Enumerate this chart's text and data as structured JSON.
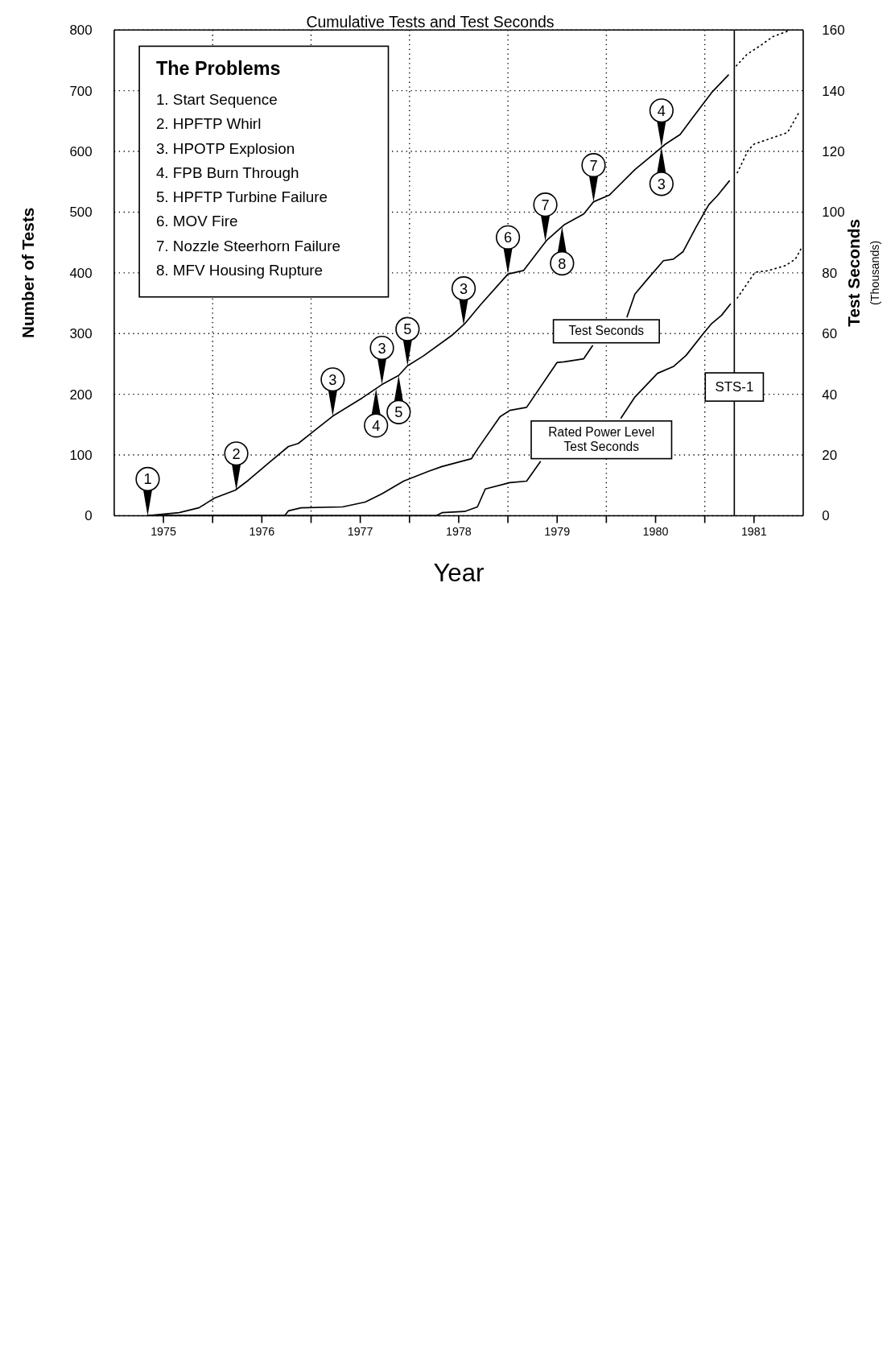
{
  "chart_data": {
    "type": "line",
    "title": "Cumulative Tests and Test Seconds",
    "xlabel": "Year",
    "ylabel": "Number of Tests",
    "y2label": "Test Seconds",
    "annotations": [
      "(Thousands)",
      "The Problems",
      "1. Start Sequence",
      "2. HPFTP Whirl",
      "3. HPOTP Explosion",
      "4. FPB Burn Through",
      "5. HPFTP Turbine Failure",
      "6. MOV Fire",
      "7. Nozzle Steerhorn Failure",
      "8. MFV Housing Rupture",
      {
        "text": "1",
        "x": 1975.34,
        "y": 0
      },
      {
        "text": "2",
        "x": 1976.24,
        "y": 42
      },
      {
        "text": "3",
        "x": 1977.22,
        "y": 164
      },
      {
        "text": "3",
        "x": 1977.72,
        "y": 216
      },
      {
        "text": "4",
        "x": 1977.66,
        "y": 209
      },
      {
        "text": "5",
        "x": 1977.98,
        "y": 247
      },
      {
        "text": "5",
        "x": 1977.89,
        "y": 231
      },
      {
        "text": "3",
        "x": 1978.55,
        "y": 314
      },
      {
        "text": "6",
        "x": 1979.0,
        "y": 398
      },
      {
        "text": "7",
        "x": 1979.38,
        "y": 452
      },
      {
        "text": "8",
        "x": 1979.55,
        "y": 476
      },
      {
        "text": "7",
        "x": 1979.87,
        "y": 517
      },
      {
        "text": "4",
        "x": 1980.56,
        "y": 607
      },
      {
        "text": "3",
        "x": 1980.56,
        "y": 607
      }
    ],
    "xlim": [
      1975,
      1982
    ],
    "xticks": [
      {
        "value": 1975.5,
        "label": "1975"
      },
      {
        "value": 1976,
        "label": null
      },
      {
        "value": 1976.5,
        "label": "1976"
      },
      {
        "value": 1977,
        "label": null
      },
      {
        "value": 1977.5,
        "label": "1977"
      },
      {
        "value": 1978,
        "label": null
      },
      {
        "value": 1978.5,
        "label": "1978"
      },
      {
        "value": 1979,
        "label": null
      },
      {
        "value": 1979.5,
        "label": "1979"
      },
      {
        "value": 1980,
        "label": null
      },
      {
        "value": 1980.5,
        "label": "1980"
      },
      {
        "value": 1981,
        "label": null
      },
      {
        "value": 1981.5,
        "label": "1981"
      }
    ],
    "ylim": [
      0,
      800
    ],
    "yticks": [
      0,
      100,
      200,
      300,
      400,
      500,
      600,
      700,
      800
    ],
    "y2lim": [
      0,
      160
    ],
    "y2ticks": [
      0,
      20,
      40,
      60,
      80,
      100,
      120,
      140,
      160
    ],
    "grid": true,
    "series": [
      {
        "color": "#000000",
        "line_style": "solid",
        "x": [
          1975.34,
          1975.66,
          1975.86,
          1976.02,
          1976.23,
          1976.36,
          1976.57,
          1976.77,
          1976.87,
          1977.01,
          1977.22,
          1977.52,
          1977.72,
          1977.89,
          1977.98,
          1978.14,
          1978.43,
          1978.56,
          1978.72,
          1979.0,
          1979.16,
          1979.39,
          1979.57,
          1979.77,
          1979.87,
          1980.03,
          1980.29,
          1980.49,
          1980.6,
          1980.75,
          1980.87,
          1981.07,
          1981.24
        ],
        "values": [
          0,
          5,
          13,
          29,
          42,
          58,
          87,
          114,
          119,
          137,
          164,
          194,
          216,
          231,
          247,
          263,
          297,
          316,
          347,
          398,
          404,
          453,
          479,
          497,
          517,
          528,
          570,
          597,
          612,
          628,
          654,
          697,
          726
        ]
      },
      {
        "color": "#000000",
        "line_style": "dotted",
        "x": [
          1981.32,
          1981.43,
          1981.58,
          1981.69,
          1981.84
        ],
        "values": [
          741,
          760,
          776,
          789,
          798
        ]
      },
      {
        "name": "Test Seconds",
        "color": "#000000",
        "line_style": "solid",
        "axis": "y2",
        "x": [
          1975.34,
          1976.73,
          1976.77,
          1976.9,
          1977.32,
          1977.55,
          1977.72,
          1977.94,
          1978.2,
          1978.33,
          1978.63,
          1978.69,
          1978.92,
          1979.02,
          1979.19,
          1979.5,
          1979.57,
          1979.77,
          1979.86,
          1980.0,
          1980.21,
          1980.29,
          1980.42,
          1980.58,
          1980.68,
          1980.78,
          1980.91,
          1981.04,
          1981.13,
          1981.25
        ],
        "values": [
          0,
          0,
          1.6,
          2.6,
          2.9,
          4.5,
          7.2,
          11.4,
          14.7,
          16.2,
          18.8,
          21.9,
          32.6,
          34.7,
          35.7,
          50.5,
          50.7,
          51.7,
          56.0,
          null,
          65.5,
          73,
          78,
          84,
          84.5,
          87,
          95,
          102.4,
          105.5,
          110.3
        ]
      },
      {
        "color": "#000000",
        "line_style": "dotted",
        "axis": "y2",
        "x": [
          1981.33,
          1981.44,
          1981.5,
          1981.84,
          1981.96
        ],
        "values": [
          113,
          120.3,
          122.4,
          126.2,
          133
        ]
      },
      {
        "name": "Rated Power Level Test Seconds",
        "color": "#000000",
        "line_style": "solid",
        "axis": "y2",
        "x": [
          1975.34,
          1978.27,
          1978.33,
          1978.56,
          1978.69,
          1978.77,
          1979.02,
          1979.19,
          1979.33,
          1979.95,
          1980.15,
          1980.29,
          1980.52,
          1980.68,
          1980.81,
          1980.99,
          1981.07,
          1981.17,
          1981.26
        ],
        "values": [
          0,
          0,
          1.0,
          1.4,
          2.9,
          8.8,
          10.9,
          11.4,
          17.8,
          null,
          32.2,
          39.1,
          46.9,
          49.1,
          52.8,
          60.2,
          63.3,
          66,
          69.7
        ]
      },
      {
        "color": "#000000",
        "line_style": "dotted",
        "axis": "y2",
        "x": [
          1981.33,
          1981.51,
          1981.64,
          1981.82,
          1981.92,
          1981.99
        ],
        "values": [
          71.7,
          80.2,
          80.7,
          82.4,
          84.5,
          88.6
        ]
      }
    ],
    "ref_lines": [
      {
        "axis": "x",
        "value": 1981.3,
        "label": "STS-1",
        "color": "#000000",
        "line_style": "solid"
      }
    ]
  }
}
